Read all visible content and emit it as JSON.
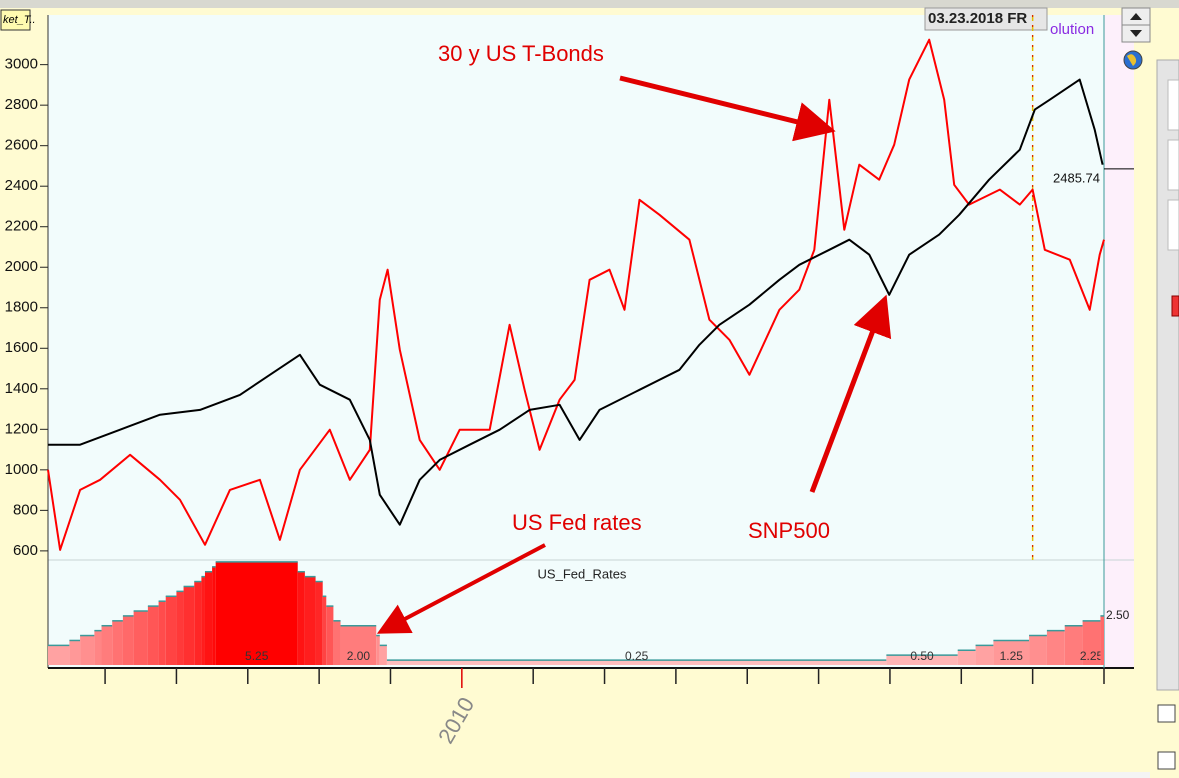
{
  "chart_data": [
    {
      "type": "line",
      "header_label": "ket_T..",
      "cursor_date": "03.23.2018 FR",
      "source_label": "olution",
      "cursor_x": 2018.0,
      "current_price": 2485.74,
      "xlim": [
        2004.2,
        2019.0
      ],
      "xticks": [
        {
          "value": 2005,
          "label": null
        },
        {
          "value": 2006,
          "label": null
        },
        {
          "value": 2007,
          "label": null
        },
        {
          "value": 2008,
          "label": null
        },
        {
          "value": 2009,
          "label": null
        },
        2010,
        {
          "value": 2011,
          "label": null
        },
        {
          "value": 2012,
          "label": null
        },
        {
          "value": 2013,
          "label": null
        },
        {
          "value": 2014,
          "label": null
        },
        {
          "value": 2015,
          "label": null
        },
        {
          "value": 2016,
          "label": null
        },
        {
          "value": 2017,
          "label": null
        },
        {
          "value": 2018,
          "label": null
        },
        {
          "value": 2019,
          "label": null
        }
      ],
      "ylim": [
        555,
        3245
      ],
      "yticks": [
        600,
        800,
        1000,
        1200,
        1400,
        1600,
        1800,
        2000,
        2200,
        2400,
        2600,
        2800,
        3000
      ],
      "series": [
        {
          "name": "SNP500",
          "color": "#000000",
          "x": [
            2004.2,
            2004.65,
            2005.21,
            2005.77,
            2006.33,
            2006.89,
            2007.31,
            2007.73,
            2008.01,
            2008.43,
            2008.71,
            2008.85,
            2009.13,
            2009.41,
            2009.69,
            2010.11,
            2010.53,
            2010.95,
            2011.37,
            2011.65,
            2011.93,
            2012.49,
            2013.05,
            2013.33,
            2013.61,
            2014.03,
            2014.45,
            2014.73,
            2015.15,
            2015.43,
            2015.71,
            2015.99,
            2016.27,
            2016.69,
            2016.97,
            2017.39,
            2017.82,
            2018.03,
            2018.24,
            2018.66,
            2018.87,
            2018.98
          ],
          "values": [
            1124,
            1124,
            1198,
            1272,
            1296,
            1370,
            1469,
            1568,
            1420,
            1346,
            1148,
            877,
            729,
            951,
            1049,
            1124,
            1198,
            1296,
            1321,
            1148,
            1296,
            1395,
            1494,
            1617,
            1716,
            1815,
            1938,
            2012,
            2086,
            2136,
            2062,
            1864,
            2062,
            2161,
            2259,
            2432,
            2580,
            2778,
            2827,
            2926,
            2679,
            2506
          ]
        },
        {
          "name": "30 y US T-Bonds",
          "color": "#ff0000",
          "x": [
            2004.2,
            2004.37,
            2004.65,
            2004.93,
            2005.35,
            2005.77,
            2006.05,
            2006.4,
            2006.75,
            2007.17,
            2007.45,
            2007.73,
            2008.15,
            2008.43,
            2008.71,
            2008.85,
            2008.96,
            2009.13,
            2009.41,
            2009.69,
            2009.97,
            2010.39,
            2010.67,
            2010.88,
            2011.09,
            2011.37,
            2011.58,
            2011.79,
            2012.07,
            2012.28,
            2012.49,
            2012.77,
            2013.19,
            2013.47,
            2013.75,
            2014.03,
            2014.45,
            2014.73,
            2014.94,
            2015.15,
            2015.36,
            2015.57,
            2015.85,
            2016.06,
            2016.27,
            2016.55,
            2016.76,
            2016.9,
            2017.11,
            2017.54,
            2017.82,
            2018.0,
            2018.17,
            2018.52,
            2018.8,
            2018.94,
            2019.0
          ],
          "values": [
            1000,
            605,
            901,
            951,
            1074,
            951,
            852,
            630,
            901,
            951,
            654,
            1000,
            1198,
            951,
            1099,
            1840,
            1988,
            1593,
            1148,
            1000,
            1198,
            1198,
            1716,
            1395,
            1099,
            1346,
            1444,
            1938,
            1988,
            1790,
            2333,
            2259,
            2136,
            1741,
            1642,
            1469,
            1790,
            1889,
            2086,
            2827,
            2185,
            2506,
            2432,
            2605,
            2926,
            3123,
            2827,
            2407,
            2309,
            2383,
            2309,
            2383,
            2086,
            2037,
            1790,
            2062,
            2136
          ]
        }
      ]
    },
    {
      "type": "step",
      "title": "US_Fed_Rates",
      "annotation": "US Fed rates",
      "xlim": [
        2004.2,
        2019.0
      ],
      "ylim": [
        0,
        5.5
      ],
      "x": [
        2004.2,
        2004.5,
        2004.65,
        2004.85,
        2004.95,
        2005.1,
        2005.25,
        2005.4,
        2005.6,
        2005.75,
        2005.85,
        2006.0,
        2006.1,
        2006.25,
        2006.35,
        2006.4,
        2006.5,
        2006.55,
        2007.7,
        2007.8,
        2007.95,
        2008.05,
        2008.1,
        2008.2,
        2008.3,
        2008.8,
        2008.85,
        2008.95,
        2015.95,
        2016.95,
        2017.2,
        2017.45,
        2017.95,
        2018.2,
        2018.45,
        2018.7,
        2018.95
      ],
      "values": [
        1.0,
        1.25,
        1.5,
        1.75,
        2.0,
        2.25,
        2.5,
        2.75,
        3.0,
        3.25,
        3.5,
        3.75,
        4.0,
        4.25,
        4.5,
        4.75,
        5.0,
        5.25,
        4.75,
        4.5,
        4.25,
        3.5,
        3.0,
        2.25,
        2.0,
        1.5,
        1.0,
        0.25,
        0.5,
        0.75,
        1.0,
        1.25,
        1.5,
        1.75,
        2.0,
        2.25,
        2.5
      ],
      "value_labels": [
        null,
        null,
        null,
        null,
        null,
        null,
        null,
        null,
        null,
        null,
        null,
        null,
        null,
        null,
        null,
        null,
        null,
        "5.25",
        null,
        null,
        null,
        null,
        null,
        null,
        "2.00",
        null,
        null,
        "0.25",
        "0.50",
        null,
        null,
        "1.25",
        null,
        null,
        null,
        "2.25",
        "2.50"
      ]
    }
  ]
}
